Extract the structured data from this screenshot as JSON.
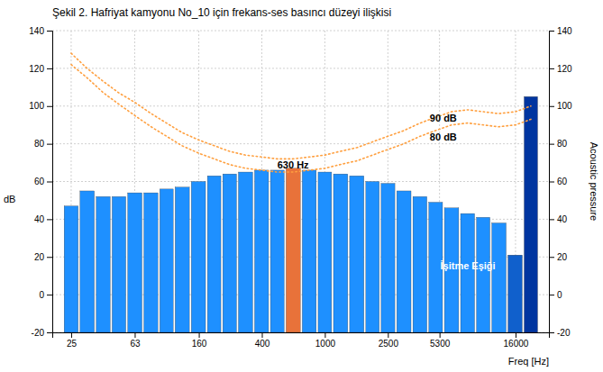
{
  "chart_data": {
    "type": "bar",
    "title": "Şekil 2. Hafriyat kamyonu No_10 için frekans-ses basıncı düzeyi ilişkisi",
    "x": [
      25,
      31.5,
      40,
      50,
      63,
      80,
      100,
      125,
      160,
      200,
      250,
      315,
      400,
      500,
      630,
      800,
      1000,
      1250,
      1600,
      2000,
      2500,
      3150,
      4000,
      5000,
      6300,
      8000,
      10000,
      12500,
      16000,
      20000
    ],
    "series": [
      {
        "type": "bar",
        "values": [
          47,
          55,
          52,
          52,
          54,
          54,
          56,
          57,
          60,
          63,
          64,
          65,
          66,
          66,
          67,
          66,
          65,
          64,
          63,
          60,
          59,
          55,
          52,
          49,
          46,
          43,
          41,
          38,
          21,
          105
        ],
        "colors": [
          "#1E90FF",
          "#1E90FF",
          "#1E90FF",
          "#1E90FF",
          "#1E90FF",
          "#1E90FF",
          "#1E90FF",
          "#1E90FF",
          "#1E90FF",
          "#1E90FF",
          "#1E90FF",
          "#1E90FF",
          "#1E90FF",
          "#1E90FF",
          "#E8723A",
          "#1E90FF",
          "#1E90FF",
          "#1E90FF",
          "#1E90FF",
          "#1E90FF",
          "#1E90FF",
          "#1E90FF",
          "#1E90FF",
          "#1E90FF",
          "#1E90FF",
          "#1E90FF",
          "#1E90FF",
          "#1E90FF",
          "#1060CC",
          "#0035A0"
        ]
      },
      {
        "type": "line",
        "values": [
          128,
          120,
          113,
          107,
          102,
          96,
          91,
          86,
          82,
          79,
          76,
          74,
          73,
          72,
          72,
          73,
          74,
          76,
          78,
          81,
          84,
          87,
          91,
          94,
          97,
          98,
          97,
          96,
          97,
          100
        ],
        "color": "#FFA040",
        "line_style": "dotted"
      },
      {
        "type": "line",
        "values": [
          122,
          115,
          107,
          101,
          95,
          89,
          84,
          79,
          75,
          72,
          69,
          67,
          66,
          65,
          65,
          66,
          67,
          69,
          71,
          74,
          77,
          80,
          84,
          87,
          90,
          91,
          90,
          89,
          90,
          93
        ],
        "color": "#FFA040",
        "line_style": "dotted"
      }
    ],
    "log": "x",
    "xlim": [
      19,
      26000
    ],
    "xticks": [
      25,
      63,
      160,
      400,
      1000,
      2500,
      5300,
      16000
    ],
    "ylim": [
      -20,
      140
    ],
    "yticks": [
      -20,
      0,
      20,
      40,
      60,
      80,
      100,
      120,
      140
    ],
    "y2lim": [
      -20,
      140
    ],
    "y2ticks": [
      -20,
      0,
      20,
      40,
      60,
      80,
      100,
      120,
      140
    ],
    "xlabel": "Freq [Hz]",
    "ylabel": "dB",
    "y2label": "Acoustic pressure",
    "grid": true,
    "annotations": [
      {
        "text": "630 Hz",
        "x": 630,
        "y": 68.5,
        "color": "#000000"
      },
      {
        "text": "90 dB",
        "x": 5600,
        "y": 93,
        "color": "#000000"
      },
      {
        "text": "80 dB",
        "x": 5600,
        "y": 83,
        "color": "#000000"
      },
      {
        "text": "İşitme Eşiği",
        "x": 8000,
        "y": 15,
        "color": "#FFFFFF"
      }
    ]
  }
}
